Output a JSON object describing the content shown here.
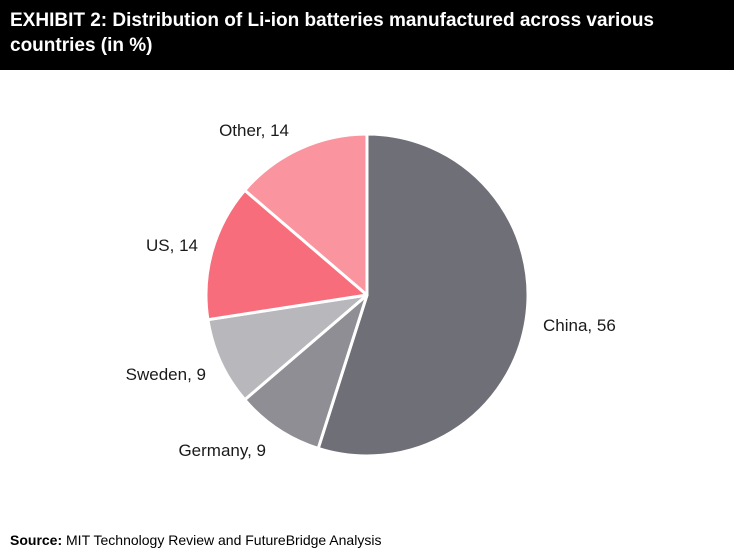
{
  "header": {
    "title": "EXHIBIT 2: Distribution of Li-ion batteries manufactured across various countries (in %)"
  },
  "chart_data": {
    "type": "pie",
    "start_angle_deg": 0,
    "direction": "clockwise",
    "slices": [
      {
        "label": "China",
        "value": 56,
        "color": "#6f6f77",
        "display": "China, 56"
      },
      {
        "label": "Germany",
        "value": 9,
        "color": "#8e8e94",
        "display": "Germany, 9"
      },
      {
        "label": "Sweden",
        "value": 9,
        "color": "#b8b8bc",
        "display": "Sweden, 9"
      },
      {
        "label": "US",
        "value": 14,
        "color": "#f86d7b",
        "display": "US, 14"
      },
      {
        "label": "Other",
        "value": 14,
        "color": "#fa959f",
        "display": "Other, 14"
      }
    ]
  },
  "footer": {
    "source_label": "Source:",
    "source_text": " MIT Technology Review and FutureBridge Analysis"
  }
}
